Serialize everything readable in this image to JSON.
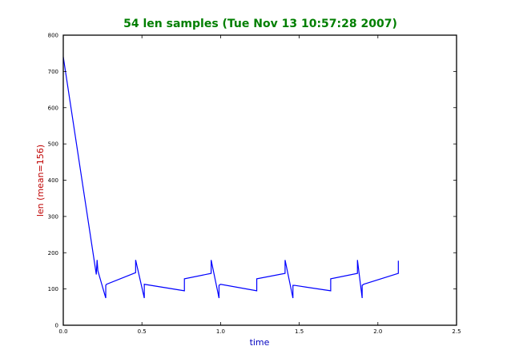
{
  "colors": {
    "title": "#007f00",
    "xlabel": "#0000bf",
    "ylabel": "#bf0000",
    "line": "#0000ff",
    "axes": "#000000",
    "background": "#ffffff"
  },
  "chart_data": {
    "type": "line",
    "title": "54 len samples (Tue Nov 13 10:57:28 2007)",
    "xlabel": "time",
    "ylabel": "len (mean=156)",
    "xlim": [
      0,
      2.5
    ],
    "ylim": [
      0,
      800
    ],
    "xticks": [
      "0.0",
      "0.5",
      "1.0",
      "1.5",
      "2.0",
      "2.5"
    ],
    "yticks": [
      "0",
      "100",
      "200",
      "300",
      "400",
      "500",
      "600",
      "700",
      "800"
    ],
    "grid": false,
    "series": [
      {
        "x": [
          0.0,
          0.21,
          0.215,
          0.22,
          0.27,
          0.27,
          0.275,
          0.46,
          0.46,
          0.515,
          0.515,
          0.77,
          0.77,
          0.94,
          0.94,
          0.99,
          0.99,
          1.0,
          1.23,
          1.23,
          1.41,
          1.41,
          1.46,
          1.46,
          1.47,
          1.7,
          1.7,
          1.87,
          1.87,
          1.9,
          1.9,
          1.91,
          2.13,
          2.13
        ],
        "y": [
          740,
          140,
          180,
          150,
          75,
          110,
          113,
          145,
          180,
          75,
          113,
          95,
          128,
          143,
          180,
          75,
          110,
          113,
          95,
          128,
          143,
          180,
          75,
          110,
          110,
          95,
          128,
          143,
          180,
          75,
          110,
          113,
          143,
          178
        ]
      }
    ]
  }
}
